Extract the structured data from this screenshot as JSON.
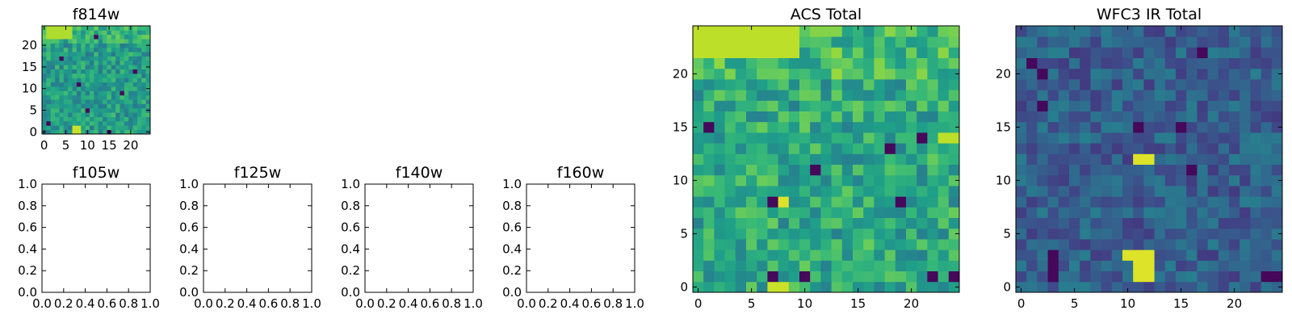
{
  "chart_data": [
    {
      "type": "heatmap",
      "title": "f814w",
      "colormap": "viridis",
      "grid_size": 25,
      "xticks": [
        0,
        5,
        10,
        15,
        20
      ],
      "yticks": [
        0,
        5,
        10,
        15,
        20
      ],
      "xlim": [
        -0.5,
        24.5
      ],
      "ylim": [
        -0.5,
        24.5
      ],
      "features": [
        {
          "x": [
            1,
            6
          ],
          "y": [
            22,
            24
          ],
          "value": 0.88
        },
        {
          "x": [
            7,
            8
          ],
          "y": [
            0,
            1
          ],
          "value": 0.92
        }
      ],
      "low_cells": [
        [
          1,
          2
        ],
        [
          8,
          11
        ],
        [
          12,
          22
        ],
        [
          18,
          9
        ],
        [
          21,
          14
        ],
        [
          15,
          0
        ],
        [
          4,
          17
        ],
        [
          10,
          5
        ]
      ]
    },
    {
      "type": "empty",
      "title": "f105w",
      "xlim": [
        0,
        1
      ],
      "ylim": [
        0,
        1
      ],
      "xticks": [
        "0.0",
        "0.2",
        "0.4",
        "0.6",
        "0.8",
        "1.0"
      ],
      "yticks": [
        "0.0",
        "0.2",
        "0.4",
        "0.6",
        "0.8",
        "1.0"
      ]
    },
    {
      "type": "empty",
      "title": "f125w",
      "xlim": [
        0,
        1
      ],
      "ylim": [
        0,
        1
      ],
      "xticks": [
        "0.0",
        "0.2",
        "0.4",
        "0.6",
        "0.8",
        "1.0"
      ],
      "yticks": [
        "0.0",
        "0.2",
        "0.4",
        "0.6",
        "0.8",
        "1.0"
      ]
    },
    {
      "type": "empty",
      "title": "f140w",
      "xlim": [
        0,
        1
      ],
      "ylim": [
        0,
        1
      ],
      "xticks": [
        "0.0",
        "0.2",
        "0.4",
        "0.6",
        "0.8",
        "1.0"
      ],
      "yticks": [
        "0.0",
        "0.2",
        "0.4",
        "0.6",
        "0.8",
        "1.0"
      ]
    },
    {
      "type": "empty",
      "title": "f160w",
      "xlim": [
        0,
        1
      ],
      "ylim": [
        0,
        1
      ],
      "xticks": [
        "0.0",
        "0.2",
        "0.4",
        "0.6",
        "0.8",
        "1.0"
      ],
      "yticks": [
        "0.0",
        "0.2",
        "0.4",
        "0.6",
        "0.8",
        "1.0"
      ]
    },
    {
      "type": "heatmap",
      "title": "ACS Total",
      "colormap": "viridis",
      "grid_size": 25,
      "xticks": [
        0,
        5,
        10,
        15,
        20
      ],
      "yticks": [
        0,
        5,
        10,
        15,
        20
      ],
      "xlim": [
        -0.5,
        24.5
      ],
      "ylim": [
        -0.5,
        24.5
      ],
      "features": [
        {
          "x": [
            0,
            9
          ],
          "y": [
            22,
            24
          ],
          "value": 0.9
        },
        {
          "x": [
            7,
            8
          ],
          "y": [
            0,
            0
          ],
          "value": 0.92
        },
        {
          "x": [
            8,
            8
          ],
          "y": [
            8,
            8
          ],
          "value": 0.95
        },
        {
          "x": [
            23,
            24
          ],
          "y": [
            14,
            14
          ],
          "value": 0.9
        }
      ],
      "low_cells": [
        [
          1,
          15
        ],
        [
          7,
          8
        ],
        [
          11,
          11
        ],
        [
          7,
          1
        ],
        [
          10,
          1
        ],
        [
          18,
          13
        ],
        [
          22,
          1
        ],
        [
          24,
          1
        ],
        [
          21,
          14
        ],
        [
          19,
          8
        ]
      ]
    },
    {
      "type": "heatmap",
      "title": "WFC3 IR Total",
      "colormap": "viridis",
      "grid_size": 25,
      "xticks": [
        0,
        5,
        10,
        15,
        20
      ],
      "yticks": [
        0,
        5,
        10,
        15,
        20
      ],
      "xlim": [
        -0.5,
        24.5
      ],
      "ylim": [
        -0.5,
        24.5
      ],
      "features": [
        {
          "x": [
            10,
            12
          ],
          "y": [
            3,
            3
          ],
          "value": 0.95
        },
        {
          "x": [
            11,
            12
          ],
          "y": [
            1,
            2
          ],
          "value": 0.95
        },
        {
          "x": [
            11,
            12
          ],
          "y": [
            12,
            12
          ],
          "value": 0.95
        }
      ],
      "low_cells": [
        [
          3,
          1
        ],
        [
          3,
          2
        ],
        [
          3,
          3
        ],
        [
          2,
          17
        ],
        [
          11,
          15
        ],
        [
          15,
          15
        ],
        [
          1,
          21
        ],
        [
          17,
          22
        ],
        [
          23,
          1
        ],
        [
          24,
          1
        ],
        [
          16,
          11
        ],
        [
          2,
          20
        ]
      ]
    }
  ]
}
